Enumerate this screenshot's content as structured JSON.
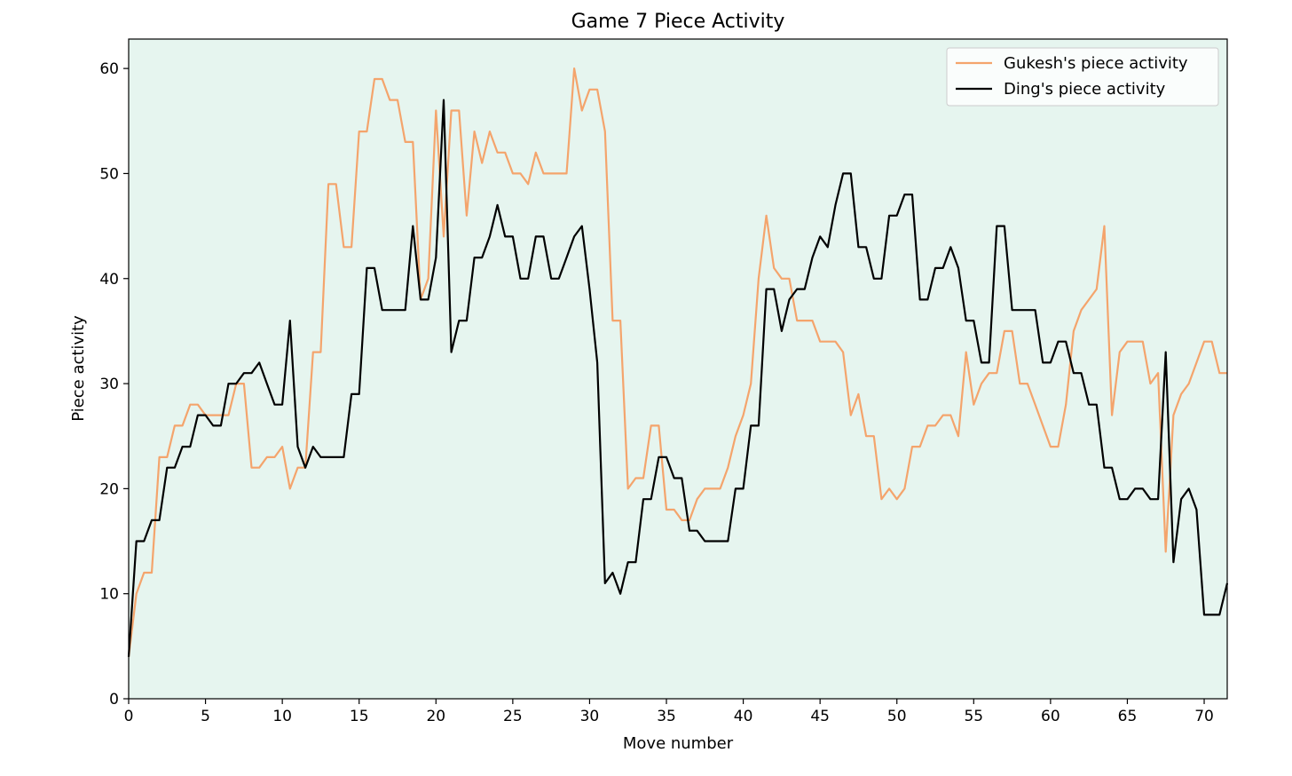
{
  "chart_data": {
    "type": "line",
    "title": "Game 7 Piece Activity",
    "xlabel": "Move number",
    "ylabel": "Piece activity",
    "xlim": [
      0,
      71.5
    ],
    "ylim": [
      0,
      62.8
    ],
    "xticks": [
      0,
      5,
      10,
      15,
      20,
      25,
      30,
      35,
      40,
      45,
      50,
      55,
      60,
      65,
      70
    ],
    "yticks": [
      0,
      10,
      20,
      30,
      40,
      50,
      60
    ],
    "grid": false,
    "legend_position": "top-right",
    "plot_background": "#e6f5ef",
    "series": [
      {
        "name": "Gukesh's piece activity",
        "color": "#f4a46c",
        "x": [
          0,
          0.5,
          1,
          1.5,
          2,
          2.5,
          3,
          3.5,
          4,
          4.5,
          5,
          5.5,
          6,
          6.5,
          7,
          7.5,
          8,
          8.5,
          9,
          9.5,
          10,
          10.5,
          11,
          11.5,
          12,
          12.5,
          13,
          13.5,
          14,
          14.5,
          15,
          15.5,
          16,
          16.5,
          17,
          17.5,
          18,
          18.5,
          19,
          19.5,
          20,
          20.5,
          21,
          21.5,
          22,
          22.5,
          23,
          23.5,
          24,
          24.5,
          25,
          25.5,
          26,
          26.5,
          27,
          27.5,
          28,
          28.5,
          29,
          29.5,
          30,
          30.5,
          31,
          31.5,
          32,
          32.5,
          33,
          33.5,
          34,
          34.5,
          35,
          35.5,
          36,
          36.5,
          37,
          37.5,
          38,
          38.5,
          39,
          39.5,
          40,
          40.5,
          41,
          41.5,
          42,
          42.5,
          43,
          43.5,
          44,
          44.5,
          45,
          45.5,
          46,
          46.5,
          47,
          47.5,
          48,
          48.5,
          49,
          49.5,
          50,
          50.5,
          51,
          51.5,
          52,
          52.5,
          53,
          53.5,
          54,
          54.5,
          55,
          55.5,
          56,
          56.5,
          57,
          57.5,
          58,
          58.5,
          59,
          59.5,
          60,
          60.5,
          61,
          61.5,
          62,
          62.5,
          63,
          63.5,
          64,
          64.5,
          65,
          65.5,
          66,
          66.5,
          67,
          67.5,
          68,
          68.5,
          69,
          69.5,
          70,
          70.5,
          71,
          71.5
        ],
        "values": [
          4,
          10,
          12,
          12,
          23,
          23,
          26,
          26,
          28,
          28,
          27,
          27,
          27,
          27,
          30,
          30,
          22,
          22,
          23,
          23,
          24,
          20,
          22,
          22,
          33,
          33,
          49,
          49,
          43,
          43,
          54,
          54,
          59,
          59,
          57,
          57,
          53,
          53,
          38,
          40,
          56,
          44,
          56,
          56,
          46,
          54,
          51,
          54,
          52,
          52,
          50,
          50,
          49,
          52,
          50,
          50,
          50,
          50,
          60,
          56,
          58,
          58,
          54,
          36,
          36,
          20,
          21,
          21,
          26,
          26,
          18,
          18,
          17,
          17,
          19,
          20,
          20,
          20,
          22,
          25,
          27,
          30,
          40,
          46,
          41,
          40,
          40,
          36,
          36,
          36,
          34,
          34,
          34,
          33,
          27,
          29,
          25,
          25,
          19,
          20,
          19,
          20,
          24,
          24,
          26,
          26,
          27,
          27,
          25,
          33,
          28,
          30,
          31,
          31,
          35,
          35,
          30,
          30,
          28,
          26,
          24,
          24,
          28,
          35,
          37,
          38,
          39,
          45,
          27,
          33,
          34,
          34,
          34,
          30,
          31,
          14,
          27,
          29,
          30,
          32,
          34,
          34,
          31,
          31
        ]
      },
      {
        "name": "Ding's piece activity",
        "color": "#000000",
        "x": [
          0,
          0.5,
          1,
          1.5,
          2,
          2.5,
          3,
          3.5,
          4,
          4.5,
          5,
          5.5,
          6,
          6.5,
          7,
          7.5,
          8,
          8.5,
          9,
          9.5,
          10,
          10.5,
          11,
          11.5,
          12,
          12.5,
          13,
          13.5,
          14,
          14.5,
          15,
          15.5,
          16,
          16.5,
          17,
          17.5,
          18,
          18.5,
          19,
          19.5,
          20,
          20.5,
          21,
          21.5,
          22,
          22.5,
          23,
          23.5,
          24,
          24.5,
          25,
          25.5,
          26,
          26.5,
          27,
          27.5,
          28,
          28.5,
          29,
          29.5,
          30,
          30.5,
          31,
          31.5,
          32,
          32.5,
          33,
          33.5,
          34,
          34.5,
          35,
          35.5,
          36,
          36.5,
          37,
          37.5,
          38,
          38.5,
          39,
          39.5,
          40,
          40.5,
          41,
          41.5,
          42,
          42.5,
          43,
          43.5,
          44,
          44.5,
          45,
          45.5,
          46,
          46.5,
          47,
          47.5,
          48,
          48.5,
          49,
          49.5,
          50,
          50.5,
          51,
          51.5,
          52,
          52.5,
          53,
          53.5,
          54,
          54.5,
          55,
          55.5,
          56,
          56.5,
          57,
          57.5,
          58,
          58.5,
          59,
          59.5,
          60,
          60.5,
          61,
          61.5,
          62,
          62.5,
          63,
          63.5,
          64,
          64.5,
          65,
          65.5,
          66,
          66.5,
          67,
          67.5,
          68,
          68.5,
          69,
          69.5,
          70,
          70.5,
          71,
          71.5
        ],
        "values": [
          4,
          15,
          15,
          17,
          17,
          22,
          22,
          24,
          24,
          27,
          27,
          26,
          26,
          30,
          30,
          31,
          31,
          32,
          30,
          28,
          28,
          36,
          24,
          22,
          24,
          23,
          23,
          23,
          23,
          29,
          29,
          41,
          41,
          37,
          37,
          37,
          37,
          45,
          38,
          38,
          42,
          57,
          33,
          36,
          36,
          42,
          42,
          44,
          47,
          44,
          44,
          40,
          40,
          44,
          44,
          40,
          40,
          42,
          44,
          45,
          39,
          32,
          11,
          12,
          10,
          13,
          13,
          19,
          19,
          23,
          23,
          21,
          21,
          16,
          16,
          15,
          15,
          15,
          15,
          20,
          20,
          26,
          26,
          39,
          39,
          35,
          38,
          39,
          39,
          42,
          44,
          43,
          47,
          50,
          50,
          43,
          43,
          40,
          40,
          46,
          46,
          48,
          48,
          38,
          38,
          41,
          41,
          43,
          41,
          36,
          36,
          32,
          32,
          45,
          45,
          37,
          37,
          37,
          37,
          32,
          32,
          34,
          34,
          31,
          31,
          28,
          28,
          22,
          22,
          19,
          19,
          20,
          20,
          19,
          19,
          33,
          13,
          19,
          20,
          18,
          8,
          8,
          8,
          11
        ]
      }
    ]
  }
}
